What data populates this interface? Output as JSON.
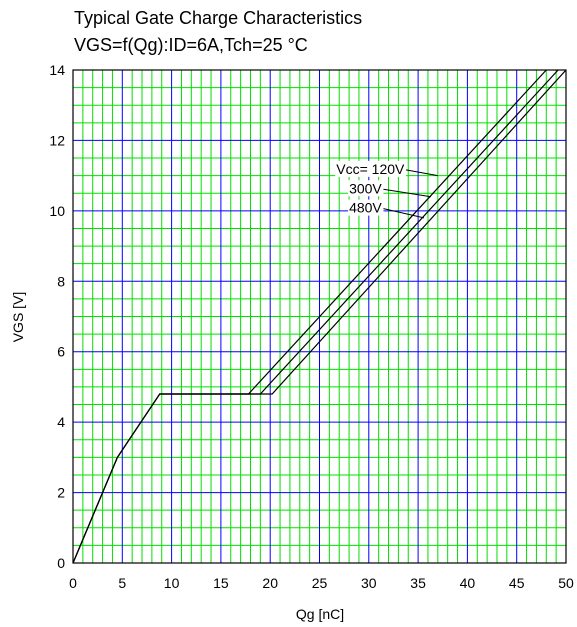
{
  "chart_data": {
    "type": "line",
    "title": "Typical Gate Charge Characteristics",
    "subtitle": "VGS=f(Qg):ID=6A,Tch=25 °C",
    "xlabel": "Qg [nC]",
    "ylabel": "VGS [V]",
    "xlim": [
      0,
      50
    ],
    "ylim": [
      0,
      14
    ],
    "x_ticks": [
      "0",
      "5",
      "10",
      "15",
      "20",
      "25",
      "30",
      "35",
      "40",
      "45",
      "50"
    ],
    "y_ticks": [
      "0",
      "2",
      "4",
      "6",
      "8",
      "10",
      "12",
      "14"
    ],
    "grid": true,
    "colors": {
      "major_grid": "#0000ff",
      "minor_grid": "#00e000",
      "line": "#000000",
      "background": "#ffffff"
    },
    "series": [
      {
        "name": "Vcc= 120V",
        "x": [
          0,
          4.5,
          8.8,
          17.8,
          48.0
        ],
        "y": [
          0,
          3.0,
          4.8,
          4.8,
          14.0
        ]
      },
      {
        "name": "300V",
        "x": [
          0,
          4.5,
          8.8,
          19.0,
          49.2
        ],
        "y": [
          0,
          3.0,
          4.8,
          4.8,
          14.0
        ]
      },
      {
        "name": "480V",
        "x": [
          0,
          4.5,
          8.8,
          20.2,
          50.0
        ],
        "y": [
          0,
          3.0,
          4.8,
          4.8,
          14.0
        ]
      }
    ],
    "annotations": [
      {
        "text": "Vcc= 120V",
        "label_x": 26.7,
        "label_y": 11.05,
        "target_x": 37.0,
        "target_y": 11.0
      },
      {
        "text": "300V",
        "label_x": 28.0,
        "label_y": 10.5,
        "target_x": 36.3,
        "target_y": 10.4
      },
      {
        "text": "480V",
        "label_x": 28.0,
        "label_y": 9.95,
        "target_x": 35.6,
        "target_y": 9.8
      }
    ]
  }
}
